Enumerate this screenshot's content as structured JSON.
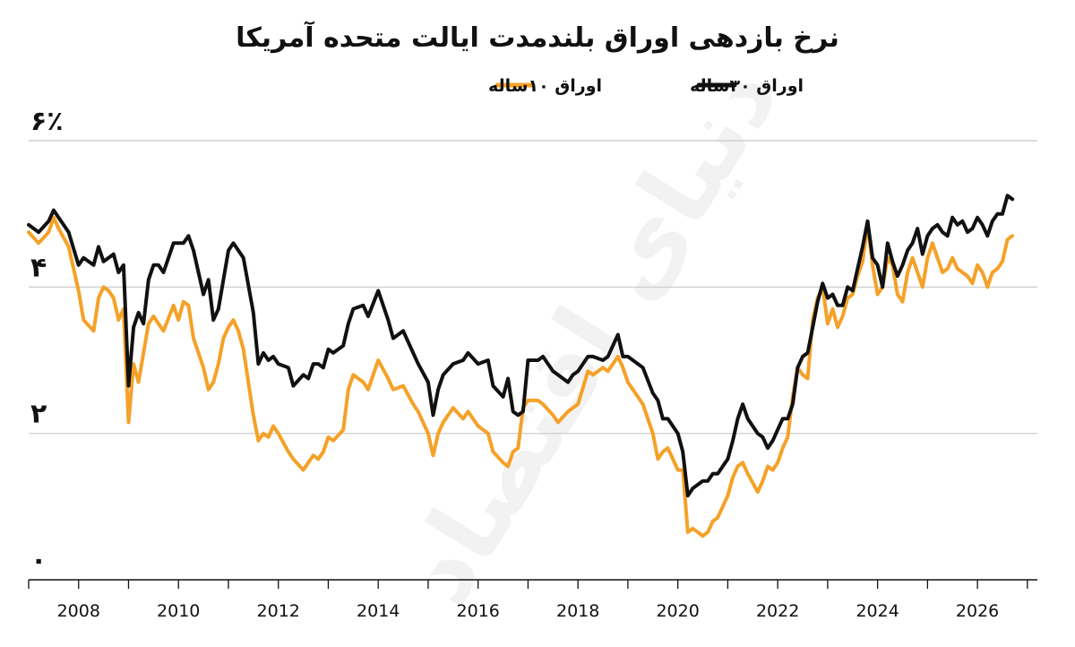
{
  "chart_data": {
    "type": "line",
    "title": "نرخ بازدهی اوراق بلندمدت ایالت متحده آمریکا",
    "legend": [
      {
        "label": "اوراق ۳۰ساله",
        "color": "#111111"
      },
      {
        "label": "اوراق ۱۰ساله",
        "color": "#f5a128"
      }
    ],
    "legend_position": "top-center",
    "grid": true,
    "ylim": [
      0,
      6
    ],
    "yticks": [
      {
        "value": 0,
        "label": "۰"
      },
      {
        "value": 2,
        "label": "۲"
      },
      {
        "value": 4,
        "label": "۴"
      },
      {
        "value": 6,
        "label": "۶٪"
      }
    ],
    "xlim": [
      2007,
      2027.2
    ],
    "xticks": [
      {
        "value": 2008,
        "label": "2008"
      },
      {
        "value": 2010,
        "label": "2010"
      },
      {
        "value": 2012,
        "label": "2012"
      },
      {
        "value": 2014,
        "label": "2014"
      },
      {
        "value": 2016,
        "label": "2016"
      },
      {
        "value": 2018,
        "label": "2018"
      },
      {
        "value": 2020,
        "label": "2020"
      },
      {
        "value": 2022,
        "label": "2022"
      },
      {
        "value": 2024,
        "label": "2024"
      },
      {
        "value": 2026,
        "label": "2026"
      }
    ],
    "series": [
      {
        "name": "اوراق ۳۰ساله",
        "color": "#111111",
        "x": [
          2007.0,
          2007.2,
          2007.4,
          2007.5,
          2007.6,
          2007.8,
          2008.0,
          2008.1,
          2008.3,
          2008.4,
          2008.5,
          2008.6,
          2008.7,
          2008.8,
          2008.9,
          2009.0,
          2009.1,
          2009.2,
          2009.3,
          2009.4,
          2009.5,
          2009.6,
          2009.7,
          2009.9,
          2010.0,
          2010.1,
          2010.2,
          2010.3,
          2010.5,
          2010.6,
          2010.7,
          2010.8,
          2010.9,
          2011.0,
          2011.1,
          2011.2,
          2011.3,
          2011.5,
          2011.6,
          2011.7,
          2011.8,
          2011.9,
          2012.0,
          2012.2,
          2012.3,
          2012.5,
          2012.6,
          2012.7,
          2012.8,
          2012.9,
          2013.0,
          2013.1,
          2013.3,
          2013.4,
          2013.5,
          2013.7,
          2013.8,
          2014.0,
          2014.2,
          2014.3,
          2014.5,
          2014.7,
          2014.8,
          2015.0,
          2015.1,
          2015.2,
          2015.3,
          2015.5,
          2015.7,
          2015.8,
          2016.0,
          2016.2,
          2016.3,
          2016.5,
          2016.6,
          2016.7,
          2016.8,
          2016.9,
          2017.0,
          2017.2,
          2017.3,
          2017.5,
          2017.6,
          2017.8,
          2017.9,
          2018.0,
          2018.2,
          2018.3,
          2018.5,
          2018.6,
          2018.8,
          2018.9,
          2019.0,
          2019.1,
          2019.3,
          2019.5,
          2019.6,
          2019.7,
          2019.8,
          2020.0,
          2020.1,
          2020.2,
          2020.3,
          2020.5,
          2020.6,
          2020.7,
          2020.8,
          2020.9,
          2021.0,
          2021.1,
          2021.2,
          2021.3,
          2021.4,
          2021.6,
          2021.7,
          2021.8,
          2021.9,
          2022.0,
          2022.1,
          2022.2,
          2022.3,
          2022.4,
          2022.5,
          2022.6,
          2022.7,
          2022.8,
          2022.9,
          2023.0,
          2023.1,
          2023.2,
          2023.3,
          2023.4,
          2023.5,
          2023.6,
          2023.7,
          2023.8,
          2023.9,
          2024.0,
          2024.1,
          2024.2,
          2024.3,
          2024.4,
          2024.5,
          2024.6,
          2024.7,
          2024.8,
          2024.9,
          2025.0,
          2025.1,
          2025.2,
          2025.3,
          2025.4,
          2025.5,
          2025.6,
          2025.7,
          2025.8,
          2025.9,
          2026.0,
          2026.1,
          2026.2,
          2026.3,
          2026.4,
          2026.5,
          2026.6,
          2026.7
        ],
        "values": [
          4.85,
          4.75,
          4.9,
          5.05,
          4.95,
          4.75,
          4.3,
          4.4,
          4.3,
          4.55,
          4.35,
          4.4,
          4.45,
          4.2,
          4.3,
          2.65,
          3.45,
          3.65,
          3.5,
          4.1,
          4.3,
          4.3,
          4.2,
          4.6,
          4.6,
          4.6,
          4.7,
          4.5,
          3.9,
          4.1,
          3.55,
          3.7,
          4.1,
          4.5,
          4.6,
          4.5,
          4.4,
          3.65,
          2.95,
          3.1,
          3.0,
          3.05,
          2.95,
          2.9,
          2.65,
          2.8,
          2.75,
          2.95,
          2.95,
          2.9,
          3.15,
          3.1,
          3.2,
          3.5,
          3.7,
          3.75,
          3.6,
          3.95,
          3.55,
          3.3,
          3.4,
          3.1,
          2.95,
          2.7,
          2.25,
          2.6,
          2.8,
          2.95,
          3.0,
          3.1,
          2.95,
          3.0,
          2.65,
          2.5,
          2.75,
          2.3,
          2.25,
          2.3,
          3.0,
          3.0,
          3.05,
          2.85,
          2.8,
          2.7,
          2.8,
          2.85,
          3.05,
          3.05,
          3.0,
          3.05,
          3.35,
          3.05,
          3.05,
          3.0,
          2.9,
          2.55,
          2.45,
          2.2,
          2.2,
          2.0,
          1.75,
          1.15,
          1.25,
          1.35,
          1.35,
          1.45,
          1.45,
          1.55,
          1.65,
          1.9,
          2.2,
          2.4,
          2.2,
          2.0,
          1.95,
          1.8,
          1.9,
          2.05,
          2.2,
          2.2,
          2.4,
          2.9,
          3.05,
          3.1,
          3.45,
          3.8,
          4.05,
          3.85,
          3.9,
          3.75,
          3.75,
          4.0,
          3.95,
          4.25,
          4.55,
          4.9,
          4.4,
          4.3,
          4.0,
          4.6,
          4.35,
          4.15,
          4.3,
          4.5,
          4.6,
          4.8,
          4.45,
          4.7,
          4.8,
          4.85,
          4.75,
          4.7,
          4.95,
          4.85,
          4.9,
          4.75,
          4.8,
          4.95,
          4.85,
          4.7,
          4.9,
          5.0,
          5.0,
          5.25,
          5.2
        ]
      },
      {
        "name": "اوراق ۱۰ساله",
        "color": "#f5a128",
        "x": [
          2007.0,
          2007.2,
          2007.4,
          2007.5,
          2007.6,
          2007.8,
          2008.0,
          2008.1,
          2008.3,
          2008.4,
          2008.5,
          2008.6,
          2008.7,
          2008.8,
          2008.9,
          2009.0,
          2009.1,
          2009.2,
          2009.3,
          2009.4,
          2009.5,
          2009.6,
          2009.7,
          2009.9,
          2010.0,
          2010.1,
          2010.2,
          2010.3,
          2010.5,
          2010.6,
          2010.7,
          2010.8,
          2010.9,
          2011.0,
          2011.1,
          2011.2,
          2011.3,
          2011.5,
          2011.6,
          2011.7,
          2011.8,
          2011.9,
          2012.0,
          2012.2,
          2012.3,
          2012.5,
          2012.6,
          2012.7,
          2012.8,
          2012.9,
          2013.0,
          2013.1,
          2013.3,
          2013.4,
          2013.5,
          2013.7,
          2013.8,
          2014.0,
          2014.2,
          2014.3,
          2014.5,
          2014.7,
          2014.8,
          2015.0,
          2015.1,
          2015.2,
          2015.3,
          2015.5,
          2015.7,
          2015.8,
          2016.0,
          2016.2,
          2016.3,
          2016.5,
          2016.6,
          2016.7,
          2016.8,
          2016.9,
          2017.0,
          2017.2,
          2017.3,
          2017.5,
          2017.6,
          2017.8,
          2017.9,
          2018.0,
          2018.2,
          2018.3,
          2018.5,
          2018.6,
          2018.8,
          2018.9,
          2019.0,
          2019.1,
          2019.3,
          2019.5,
          2019.6,
          2019.7,
          2019.8,
          2020.0,
          2020.1,
          2020.2,
          2020.3,
          2020.5,
          2020.6,
          2020.7,
          2020.8,
          2020.9,
          2021.0,
          2021.1,
          2021.2,
          2021.3,
          2021.4,
          2021.6,
          2021.7,
          2021.8,
          2021.9,
          2022.0,
          2022.1,
          2022.2,
          2022.3,
          2022.4,
          2022.5,
          2022.6,
          2022.7,
          2022.8,
          2022.9,
          2023.0,
          2023.1,
          2023.2,
          2023.3,
          2023.4,
          2023.5,
          2023.6,
          2023.7,
          2023.8,
          2023.9,
          2024.0,
          2024.1,
          2024.2,
          2024.3,
          2024.4,
          2024.5,
          2024.6,
          2024.7,
          2024.8,
          2024.9,
          2025.0,
          2025.1,
          2025.2,
          2025.3,
          2025.4,
          2025.5,
          2025.6,
          2025.7,
          2025.8,
          2025.9,
          2026.0,
          2026.1,
          2026.2,
          2026.3,
          2026.4,
          2026.5,
          2026.6,
          2026.7
        ],
        "values": [
          4.75,
          4.6,
          4.75,
          4.95,
          4.8,
          4.55,
          3.95,
          3.55,
          3.4,
          3.85,
          4.0,
          3.95,
          3.85,
          3.55,
          3.7,
          2.15,
          2.95,
          2.7,
          3.1,
          3.5,
          3.6,
          3.5,
          3.4,
          3.75,
          3.55,
          3.8,
          3.75,
          3.3,
          2.9,
          2.6,
          2.7,
          2.95,
          3.3,
          3.45,
          3.55,
          3.4,
          3.15,
          2.25,
          1.9,
          2.0,
          1.95,
          2.1,
          2.0,
          1.75,
          1.65,
          1.5,
          1.6,
          1.7,
          1.65,
          1.75,
          1.95,
          1.9,
          2.05,
          2.6,
          2.8,
          2.7,
          2.6,
          3.0,
          2.75,
          2.6,
          2.65,
          2.4,
          2.3,
          2.0,
          1.7,
          2.0,
          2.15,
          2.35,
          2.2,
          2.3,
          2.1,
          2.0,
          1.75,
          1.6,
          1.55,
          1.75,
          1.8,
          2.35,
          2.45,
          2.45,
          2.4,
          2.25,
          2.15,
          2.3,
          2.35,
          2.4,
          2.85,
          2.8,
          2.9,
          2.85,
          3.05,
          2.9,
          2.7,
          2.6,
          2.4,
          2.0,
          1.65,
          1.75,
          1.8,
          1.5,
          1.5,
          0.65,
          0.7,
          0.6,
          0.65,
          0.8,
          0.85,
          1.0,
          1.15,
          1.4,
          1.55,
          1.6,
          1.45,
          1.2,
          1.35,
          1.55,
          1.5,
          1.6,
          1.8,
          1.95,
          2.5,
          2.9,
          2.8,
          2.75,
          3.55,
          3.85,
          4.0,
          3.5,
          3.7,
          3.45,
          3.6,
          3.85,
          3.9,
          4.15,
          4.35,
          4.85,
          4.3,
          3.9,
          4.0,
          4.4,
          4.3,
          3.9,
          3.8,
          4.2,
          4.4,
          4.2,
          4.0,
          4.4,
          4.6,
          4.4,
          4.2,
          4.25,
          4.4,
          4.25,
          4.2,
          4.15,
          4.05,
          4.3,
          4.2,
          4.0,
          4.2,
          4.25,
          4.35,
          4.65,
          4.7
        ]
      }
    ]
  },
  "watermark": "دنیای اقتصاد"
}
